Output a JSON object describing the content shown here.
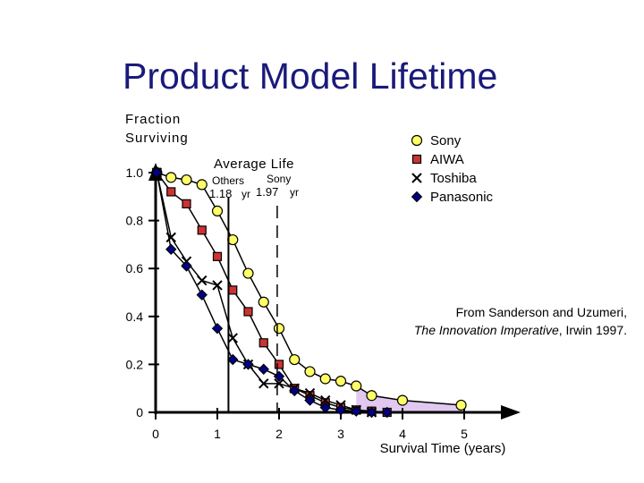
{
  "title": "Product Model Lifetime",
  "chart_data": {
    "type": "line",
    "title": "Product Model Lifetime",
    "ylabel_lines": [
      "Fraction",
      "Surviving"
    ],
    "xlabel": "Survival  Time  (years)",
    "xlim": [
      0,
      6
    ],
    "ylim": [
      0,
      1.05
    ],
    "x_ticks": [
      "0",
      "1",
      "2",
      "3",
      "4",
      "5"
    ],
    "y_ticks": [
      "1.0",
      "0.8",
      "0.6",
      "0.4",
      "0.2",
      "0"
    ],
    "y_tick_values": [
      1.0,
      0.8,
      0.6,
      0.4,
      0.2,
      0
    ],
    "series": [
      {
        "name": "Sony",
        "marker": "circle",
        "color": "#ffff66",
        "x": [
          0.02,
          0.25,
          0.5,
          0.75,
          1.0,
          1.25,
          1.5,
          1.75,
          2.0,
          2.25,
          2.5,
          2.75,
          3.0,
          3.25,
          3.5,
          4.0,
          4.95
        ],
        "y": [
          1.0,
          0.98,
          0.97,
          0.95,
          0.84,
          0.72,
          0.58,
          0.46,
          0.35,
          0.22,
          0.17,
          0.14,
          0.13,
          0.11,
          0.07,
          0.05,
          0.03
        ]
      },
      {
        "name": "AIWA",
        "marker": "square",
        "color": "#cc3333",
        "x": [
          0.02,
          0.25,
          0.5,
          0.75,
          1.0,
          1.25,
          1.5,
          1.75,
          2.0,
          2.25,
          2.5,
          2.75,
          3.0,
          3.25,
          3.5,
          3.75
        ],
        "y": [
          1.0,
          0.92,
          0.87,
          0.76,
          0.65,
          0.51,
          0.42,
          0.29,
          0.2,
          0.1,
          0.07,
          0.04,
          0.02,
          0.01,
          0.005,
          0.0
        ]
      },
      {
        "name": "Toshiba",
        "marker": "x",
        "color": "#000000",
        "x": [
          0.02,
          0.25,
          0.5,
          0.75,
          1.0,
          1.25,
          1.5,
          1.75,
          2.0,
          2.25,
          2.5,
          2.75,
          3.0,
          3.25,
          3.5
        ],
        "y": [
          1.0,
          0.73,
          0.63,
          0.55,
          0.53,
          0.31,
          0.2,
          0.12,
          0.12,
          0.1,
          0.08,
          0.05,
          0.03,
          0.01,
          0.0
        ]
      },
      {
        "name": "Panasonic",
        "marker": "diamond",
        "color": "#000080",
        "x": [
          0.02,
          0.25,
          0.5,
          0.75,
          1.0,
          1.25,
          1.5,
          1.75,
          2.0,
          2.25,
          2.5,
          2.75,
          3.0,
          3.25,
          3.5,
          3.75
        ],
        "y": [
          1.0,
          0.68,
          0.61,
          0.49,
          0.35,
          0.22,
          0.2,
          0.18,
          0.15,
          0.09,
          0.05,
          0.02,
          0.01,
          0.005,
          0.0,
          0.0
        ]
      }
    ],
    "legend": [
      "Sony",
      "AIWA",
      "Toshiba",
      "Panasonic"
    ],
    "legend_position": "top-right",
    "annotations": {
      "average_life": "Average  Life",
      "others_label": "Others",
      "others_value": "1.18",
      "others_unit": "yr",
      "sony_label": "Sony",
      "sony_value": "1.97",
      "sony_unit": "yr",
      "others_avg_x": 1.18,
      "sony_avg_x": 1.97
    },
    "source_line1": "From Sanderson and Uzumeri,",
    "source_italic": "The Innovation Imperative",
    "source_rest": ", Irwin 1997.",
    "shaded_tail": {
      "x": [
        3.25,
        3.5,
        4.0,
        4.95
      ],
      "y": [
        0.11,
        0.07,
        0.05,
        0.03
      ],
      "color": "#e0c8f0"
    }
  }
}
